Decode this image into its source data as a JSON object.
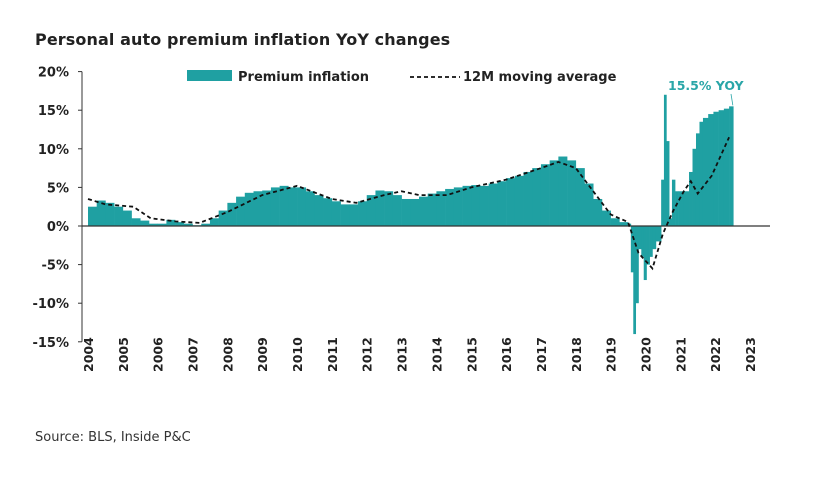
{
  "chart_data": {
    "type": "bar",
    "title": "Personal auto premium inflation YoY changes",
    "source": "Source: BLS, Inside P&C",
    "xlabel": "",
    "ylabel": "",
    "ylim": [
      -15,
      20
    ],
    "xlim": [
      2004,
      2023
    ],
    "y_ticks": [
      "20%",
      "15%",
      "10%",
      "5%",
      "0%",
      "-5%",
      "-10%",
      "-15%"
    ],
    "y_tick_values": [
      20,
      15,
      10,
      5,
      0,
      -5,
      -10,
      -15
    ],
    "x_ticks": [
      "2004",
      "2005",
      "2006",
      "2007",
      "2008",
      "2009",
      "2010",
      "2011",
      "2012",
      "2013",
      "2014",
      "2015",
      "2016",
      "2017",
      "2018",
      "2019",
      "2020",
      "2021",
      "2022",
      "2023"
    ],
    "legend": {
      "placement": "top",
      "items": [
        "Premium inflation",
        "12M moving average"
      ]
    },
    "annotation": {
      "text": "15.5% YOY",
      "x": 2022.45,
      "y": 15.5
    },
    "colors": {
      "bar": "#1fa0a2",
      "ma": "#111111",
      "annotation": "#2aa6a8",
      "axis": "#333333"
    },
    "series": [
      {
        "name": "Premium inflation",
        "kind": "bar",
        "x": [
          2004,
          2004.25,
          2004.5,
          2004.75,
          2005,
          2005.25,
          2005.5,
          2005.75,
          2006,
          2006.25,
          2006.5,
          2006.75,
          2007,
          2007.25,
          2007.5,
          2007.75,
          2008,
          2008.25,
          2008.5,
          2008.75,
          2009,
          2009.25,
          2009.5,
          2009.75,
          2010,
          2010.25,
          2010.5,
          2010.75,
          2011,
          2011.25,
          2011.5,
          2011.75,
          2012,
          2012.25,
          2012.5,
          2012.75,
          2013,
          2013.25,
          2013.5,
          2013.75,
          2014,
          2014.25,
          2014.5,
          2014.75,
          2015,
          2015.25,
          2015.5,
          2015.75,
          2016,
          2016.25,
          2016.5,
          2016.75,
          2017,
          2017.25,
          2017.5,
          2017.75,
          2018,
          2018.25,
          2018.5,
          2018.75,
          2019,
          2019.25,
          2019.5,
          2019.58,
          2019.65,
          2019.72,
          2019.8,
          2019.88,
          2019.95,
          2020.03,
          2020.12,
          2020.2,
          2020.3,
          2020.45,
          2020.53,
          2020.6,
          2020.68,
          2020.76,
          2020.85,
          2020.95,
          2021.1,
          2021.25,
          2021.35,
          2021.45,
          2021.55,
          2021.65,
          2021.8,
          2021.95,
          2022.1,
          2022.25,
          2022.4
        ],
        "values": [
          2.5,
          3.3,
          3.0,
          2.5,
          2.0,
          1.0,
          0.7,
          0.3,
          0.3,
          0.8,
          0.5,
          0.3,
          0.1,
          0.3,
          1.0,
          2.0,
          3.0,
          3.8,
          4.3,
          4.5,
          4.6,
          5.0,
          5.2,
          5.0,
          5.0,
          4.5,
          4.0,
          3.6,
          3.2,
          2.8,
          2.8,
          3.2,
          4.0,
          4.6,
          4.5,
          4.0,
          3.5,
          3.5,
          3.8,
          4.2,
          4.5,
          4.8,
          5.0,
          5.2,
          5.3,
          5.2,
          5.5,
          5.8,
          6.2,
          6.5,
          7.0,
          7.5,
          8.0,
          8.5,
          9.0,
          8.5,
          7.5,
          5.5,
          3.5,
          2.0,
          1.0,
          0.5,
          0.3,
          -6.0,
          -14.0,
          -10.0,
          -3.0,
          -4.0,
          -7.0,
          -5.0,
          -4.0,
          -3.0,
          -2.0,
          6.0,
          17.0,
          11.0,
          1.0,
          6.0,
          4.5,
          4.5,
          4.5,
          7.0,
          10.0,
          12.0,
          13.5,
          14.0,
          14.5,
          14.8,
          15.0,
          15.2,
          15.5
        ]
      },
      {
        "name": "12M moving average",
        "kind": "line",
        "x": [
          2004,
          2004.5,
          2005.3,
          2005.8,
          2006.5,
          2007.2,
          2008,
          2009,
          2010,
          2011,
          2011.7,
          2012.5,
          2013,
          2013.5,
          2014.3,
          2015,
          2016,
          2017,
          2017.5,
          2018,
          2018.5,
          2019,
          2019.5,
          2019.8,
          2020.2,
          2020.5,
          2020.8,
          2021.1,
          2021.3,
          2021.5,
          2021.9,
          2022.4
        ],
        "values": [
          3.5,
          2.8,
          2.5,
          1.0,
          0.6,
          0.4,
          1.8,
          4.0,
          5.2,
          3.5,
          3.0,
          4.0,
          4.5,
          4.0,
          4.0,
          5.0,
          6.0,
          7.5,
          8.3,
          7.5,
          4.5,
          1.5,
          0.5,
          -3.5,
          -5.5,
          -1.0,
          2.0,
          4.5,
          5.8,
          4.2,
          6.5,
          11.5
        ]
      }
    ]
  }
}
